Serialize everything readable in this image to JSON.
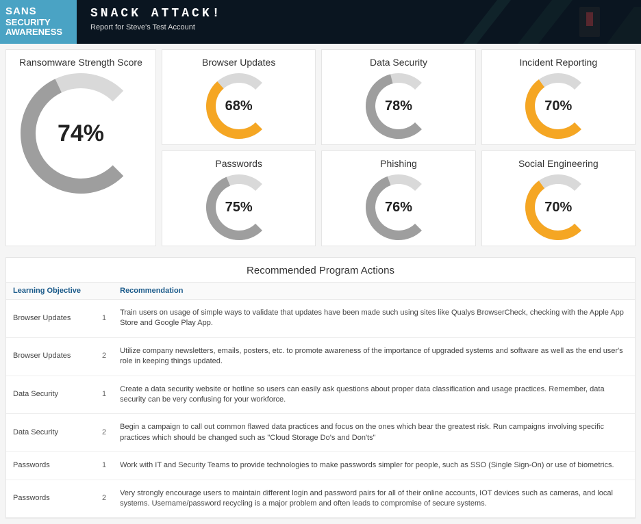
{
  "header": {
    "logo_line1": "SANS",
    "logo_line2": "SECURITY",
    "logo_line3": "AWARENESS",
    "title": "SNACK ATTACK!",
    "subtitle": "Report for Steve's Test Account",
    "logo_bg": "#4aa3c4",
    "bg": "#0a1520"
  },
  "gauge_style": {
    "track_color": "#d9d9d9",
    "orange": "#f5a623",
    "gray": "#9e9e9e",
    "thickness_big": 22,
    "thickness_small": 14,
    "start_angle": 135,
    "sweep": 270
  },
  "main_gauge": {
    "title": "Ransomware Strength Score",
    "value": 74,
    "display": "74%",
    "color": "#9e9e9e",
    "size": 180
  },
  "gauges": [
    {
      "title": "Browser Updates",
      "value": 68,
      "display": "68%",
      "color": "#f5a623",
      "size": 100
    },
    {
      "title": "Data Security",
      "value": 78,
      "display": "78%",
      "color": "#9e9e9e",
      "size": 100
    },
    {
      "title": "Incident Reporting",
      "value": 70,
      "display": "70%",
      "color": "#f5a623",
      "size": 100
    },
    {
      "title": "Passwords",
      "value": 75,
      "display": "75%",
      "color": "#9e9e9e",
      "size": 100
    },
    {
      "title": "Phishing",
      "value": 76,
      "display": "76%",
      "color": "#9e9e9e",
      "size": 100
    },
    {
      "title": "Social Engineering",
      "value": 70,
      "display": "70%",
      "color": "#f5a623",
      "size": 100
    }
  ],
  "actions": {
    "heading": "Recommended Program Actions",
    "col_objective": "Learning Objective",
    "col_recommendation": "Recommendation",
    "rows": [
      {
        "objective": "Browser Updates",
        "num": "1",
        "rec": "Train users on usage of simple ways to validate that updates have been made such using sites like Qualys BrowserCheck, checking with the Apple App Store and Google Play App."
      },
      {
        "objective": "Browser Updates",
        "num": "2",
        "rec": "Utilize company newsletters, emails, posters, etc. to promote awareness of the importance of upgraded systems and software as well as the end user's role in keeping things updated."
      },
      {
        "objective": "Data Security",
        "num": "1",
        "rec": "Create a data security website or hotline so users can easily ask questions about proper data classification and usage practices. Remember, data security can be very confusing for your workforce."
      },
      {
        "objective": "Data Security",
        "num": "2",
        "rec": "Begin a campaign to call out common flawed data practices and focus on the ones which bear the greatest risk. Run campaigns involving specific practices which should be changed such as \"Cloud Storage Do's and Don'ts\""
      },
      {
        "objective": "Passwords",
        "num": "1",
        "rec": "Work with IT and Security Teams to provide technologies to make passwords simpler for people, such as SSO (Single Sign-On) or use of biometrics."
      },
      {
        "objective": "Passwords",
        "num": "2",
        "rec": "Very strongly encourage users to maintain different login and password pairs for all of their online accounts, IOT devices such as cameras, and local systems. Username/password recycling is a major problem and often leads to compromise of secure systems."
      }
    ]
  }
}
